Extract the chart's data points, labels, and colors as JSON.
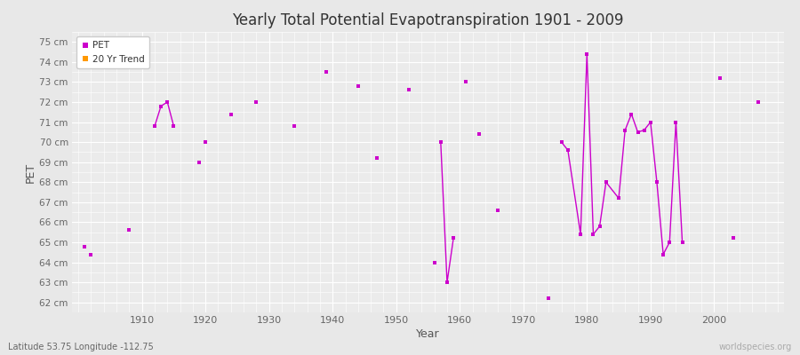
{
  "title": "Yearly Total Potential Evapotranspiration 1901 - 2009",
  "xlabel": "Year",
  "ylabel": "PET",
  "subtitle_left": "Latitude 53.75 Longitude -112.75",
  "subtitle_right": "worldspecies.org",
  "ylim": [
    61.5,
    75.5
  ],
  "xlim": [
    1899,
    2011
  ],
  "ytick_labels": [
    "62 cm",
    "63 cm",
    "64 cm",
    "65 cm",
    "66 cm",
    "67 cm",
    "68 cm",
    "69 cm",
    "70 cm",
    "71 cm",
    "72 cm",
    "73 cm",
    "74 cm",
    "75 cm"
  ],
  "ytick_values": [
    62,
    63,
    64,
    65,
    66,
    67,
    68,
    69,
    70,
    71,
    72,
    73,
    74,
    75
  ],
  "xtick_values": [
    1910,
    1920,
    1930,
    1940,
    1950,
    1960,
    1970,
    1980,
    1990,
    2000
  ],
  "pet_color": "#cc00cc",
  "trend_color": "#ff9900",
  "fig_bg_color": "#e8e8e8",
  "plot_bg_color": "#ebebeb",
  "grid_color": "#ffffff",
  "pet_data": [
    [
      1901,
      64.8
    ],
    [
      1902,
      64.4
    ],
    [
      1908,
      65.6
    ],
    [
      1912,
      70.8
    ],
    [
      1913,
      71.8
    ],
    [
      1914,
      72.0
    ],
    [
      1915,
      70.8
    ],
    [
      1919,
      69.0
    ],
    [
      1920,
      70.0
    ],
    [
      1924,
      71.4
    ],
    [
      1928,
      72.0
    ],
    [
      1934,
      70.8
    ],
    [
      1939,
      73.5
    ],
    [
      1944,
      72.8
    ],
    [
      1947,
      69.2
    ],
    [
      1952,
      72.6
    ],
    [
      1956,
      64.0
    ],
    [
      1957,
      70.0
    ],
    [
      1958,
      63.0
    ],
    [
      1959,
      65.2
    ],
    [
      1961,
      73.0
    ],
    [
      1963,
      70.4
    ],
    [
      1966,
      66.6
    ],
    [
      1974,
      62.2
    ],
    [
      1976,
      70.0
    ],
    [
      1977,
      69.6
    ],
    [
      1979,
      65.4
    ],
    [
      1980,
      74.4
    ],
    [
      1981,
      65.4
    ],
    [
      1982,
      65.8
    ],
    [
      1983,
      68.0
    ],
    [
      1985,
      67.2
    ],
    [
      1986,
      70.6
    ],
    [
      1987,
      71.4
    ],
    [
      1988,
      70.5
    ],
    [
      1989,
      70.6
    ],
    [
      1990,
      71.0
    ],
    [
      1991,
      68.0
    ],
    [
      1992,
      64.4
    ],
    [
      1993,
      65.0
    ],
    [
      1994,
      71.0
    ],
    [
      1995,
      65.0
    ],
    [
      2001,
      73.2
    ],
    [
      2003,
      65.2
    ],
    [
      2007,
      72.0
    ]
  ],
  "connected_segments": [
    [
      [
        1912,
        70.8
      ],
      [
        1913,
        71.8
      ],
      [
        1914,
        72.0
      ],
      [
        1915,
        70.8
      ]
    ],
    [
      [
        1957,
        70.0
      ],
      [
        1958,
        63.0
      ],
      [
        1959,
        65.2
      ]
    ],
    [
      [
        1976,
        70.0
      ],
      [
        1977,
        69.6
      ],
      [
        1979,
        65.4
      ],
      [
        1980,
        74.4
      ],
      [
        1981,
        65.4
      ],
      [
        1982,
        65.8
      ],
      [
        1983,
        68.0
      ],
      [
        1985,
        67.2
      ],
      [
        1986,
        70.6
      ],
      [
        1987,
        71.4
      ],
      [
        1988,
        70.5
      ],
      [
        1989,
        70.6
      ],
      [
        1990,
        71.0
      ],
      [
        1991,
        68.0
      ],
      [
        1992,
        64.4
      ],
      [
        1993,
        65.0
      ],
      [
        1994,
        71.0
      ],
      [
        1995,
        65.0
      ]
    ]
  ]
}
